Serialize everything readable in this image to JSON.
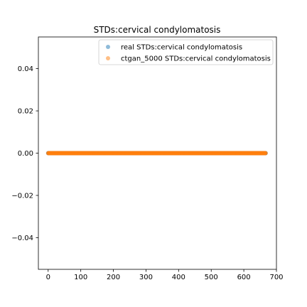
{
  "chart_data": {
    "type": "scatter",
    "title": "STDs:cervical condylomatosis",
    "xlabel": "",
    "ylabel": "",
    "xlim": [
      -30,
      700
    ],
    "ylim": [
      -0.055,
      0.055
    ],
    "xticks": [
      0,
      100,
      200,
      300,
      400,
      500,
      600,
      700
    ],
    "yticks": [
      -0.04,
      -0.02,
      0.0,
      0.02,
      0.04
    ],
    "xtick_labels": [
      "0",
      "100",
      "200",
      "300",
      "400",
      "500",
      "600",
      "700"
    ],
    "ytick_labels": [
      "−0.04",
      "−0.02",
      "0.00",
      "0.02",
      "0.04"
    ],
    "legend_position": "top-right",
    "grid": false,
    "series": [
      {
        "name": "real STDs:cervical condylomatosis",
        "color": "#1f77b4",
        "alpha": 0.5,
        "x_start": 0,
        "x_end": 667,
        "x_step": 1,
        "y_value": 0.0
      },
      {
        "name": "ctgan_5000 STDs:cervical condylomatosis",
        "color": "#ff7f0e",
        "alpha": 0.5,
        "x_start": 0,
        "x_end": 667,
        "x_step": 1,
        "y_value": 0.0
      }
    ]
  }
}
